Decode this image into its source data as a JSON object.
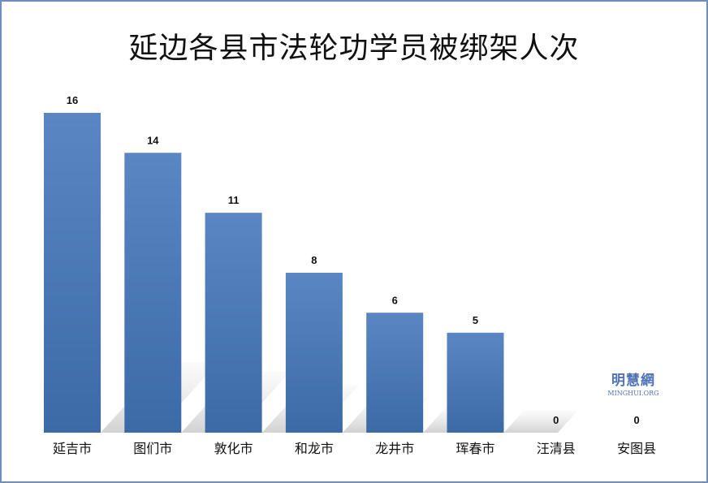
{
  "chart_data": {
    "type": "bar",
    "title": "延边各县市法轮功学员被绑架人次",
    "categories": [
      "延吉市",
      "图们市",
      "敦化市",
      "和龙市",
      "龙井市",
      "珲春市",
      "汪清县",
      "安图县"
    ],
    "values": [
      16,
      14,
      11,
      8,
      6,
      5,
      0,
      0
    ],
    "ylim": [
      0,
      16
    ],
    "grid": false,
    "legend": "none",
    "bar_color": "#4f7dbb"
  },
  "watermark": {
    "name_cn": "明慧網",
    "name_en": "MINGHUI.ORG"
  },
  "colors": {
    "frame": "#6e8fc0",
    "bar_top": "#5a86c4",
    "bar_bottom": "#3b6aa8",
    "shadow": "#d9d9d9"
  }
}
